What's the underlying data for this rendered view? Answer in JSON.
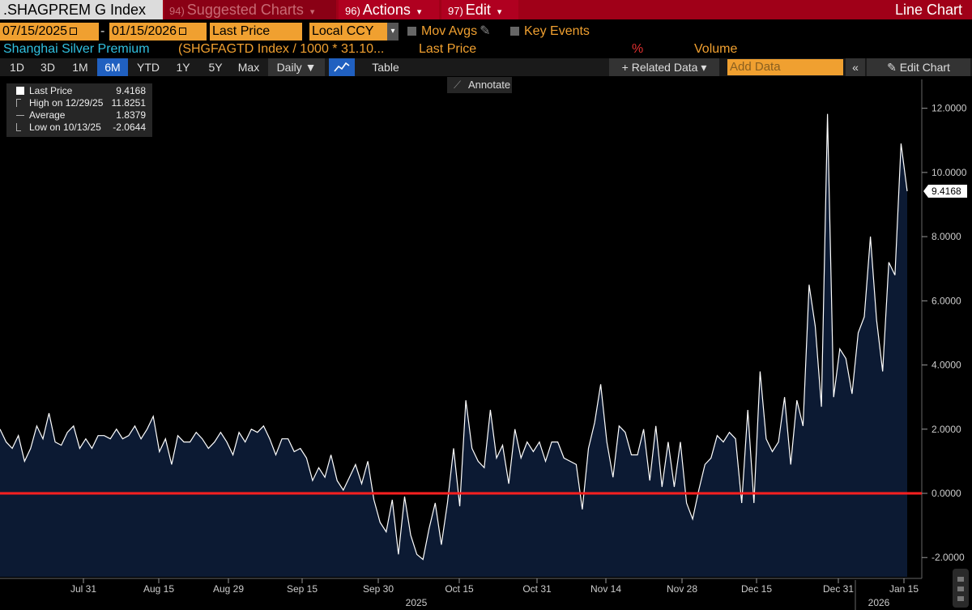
{
  "header": {
    "ticker": ".SHAGPREM G Index",
    "suggested_num": "94)",
    "suggested_label": "Suggested Charts",
    "actions_num": "96)",
    "actions_label": "Actions",
    "edit_num": "97)",
    "edit_label": "Edit",
    "chart_type": "Line Chart"
  },
  "controls": {
    "start_date": "07/15/2025",
    "separator": "-",
    "end_date": "01/15/2026",
    "field": "Last Price",
    "currency": "Local CCY",
    "mov_avgs": "Mov Avgs",
    "key_events": "Key Events"
  },
  "info_row": {
    "security": "Shanghai Silver Premium",
    "formula": "(SHGFAGTD Index / 1000 * 31.10...",
    "field": "Last Price",
    "percent": "%",
    "volume": "Volume"
  },
  "toolbar": {
    "periods": [
      "1D",
      "3D",
      "1M",
      "6M",
      "YTD",
      "1Y",
      "5Y",
      "Max"
    ],
    "selected_period": "6M",
    "frequency": "Daily ▼",
    "table": "Table",
    "related_data": "+ Related Data ▾",
    "add_data_placeholder": "Add Data",
    "collapse": "«",
    "edit_chart": "Edit Chart"
  },
  "legend": {
    "last_label": "Last Price",
    "last_value": "9.4168",
    "high_label": "High on 12/29/25",
    "high_value": "11.8251",
    "avg_label": "Average",
    "avg_value": "1.8379",
    "low_label": "Low on 10/13/25",
    "low_value": "-2.0644"
  },
  "annotate": "Annotate",
  "colors": {
    "line": "#ffffff",
    "fill": "#0c1a33",
    "zero_line": "#ff2020",
    "last_badge_bg": "#ffffff",
    "last_badge_text": "#000000"
  },
  "chart_data": {
    "type": "area",
    "title": "Shanghai Silver Premium",
    "ylim": [
      -2.6,
      12.9
    ],
    "yticks": [
      "12.0000",
      "10.0000",
      "8.0000",
      "6.0000",
      "4.0000",
      "2.0000",
      "0.0000",
      "-2.0000"
    ],
    "ytick_values": [
      12,
      10,
      8,
      6,
      4,
      2,
      0,
      -2
    ],
    "xticks": [
      "Jul 31",
      "Aug 15",
      "Aug 29",
      "Sep 15",
      "Sep 30",
      "Oct 15",
      "Oct 31",
      "Nov 14",
      "Nov 28",
      "Dec 15",
      "Dec 31",
      "Jan 15"
    ],
    "xtick_years": [
      "2025",
      "2026"
    ],
    "reference_line": 0,
    "last_value_label": "9.4168",
    "series": [
      {
        "name": "Last Price",
        "values": [
          2.0,
          1.6,
          1.4,
          1.8,
          1.0,
          1.4,
          2.1,
          1.7,
          2.5,
          1.6,
          1.5,
          1.9,
          2.1,
          1.4,
          1.7,
          1.4,
          1.8,
          1.8,
          1.7,
          2.0,
          1.7,
          1.8,
          2.1,
          1.7,
          2.0,
          2.4,
          1.3,
          1.7,
          0.9,
          1.8,
          1.6,
          1.6,
          1.9,
          1.7,
          1.4,
          1.6,
          1.9,
          1.6,
          1.2,
          1.9,
          1.6,
          2.0,
          1.9,
          2.1,
          1.7,
          1.2,
          1.7,
          1.7,
          1.3,
          1.4,
          1.1,
          0.4,
          0.8,
          0.5,
          1.2,
          0.4,
          0.1,
          0.5,
          0.9,
          0.3,
          1.0,
          -0.2,
          -0.9,
          -1.2,
          -0.2,
          -1.9,
          -0.1,
          -1.3,
          -1.9,
          -2.06,
          -1.1,
          -0.3,
          -1.6,
          -0.3,
          1.4,
          -0.4,
          2.9,
          1.4,
          1.0,
          0.8,
          2.6,
          1.1,
          1.5,
          0.3,
          2.0,
          1.1,
          1.6,
          1.3,
          1.6,
          1.0,
          1.6,
          1.6,
          1.1,
          1.0,
          0.9,
          -0.5,
          1.4,
          2.2,
          3.4,
          1.6,
          0.5,
          2.1,
          1.9,
          1.2,
          1.2,
          2.0,
          0.4,
          2.1,
          0.2,
          1.6,
          0.2,
          1.6,
          -0.3,
          -0.8,
          0.1,
          0.9,
          1.1,
          1.8,
          1.6,
          1.9,
          1.7,
          -0.3,
          2.6,
          -0.3,
          3.8,
          1.7,
          1.3,
          1.6,
          3.0,
          0.9,
          2.9,
          2.1,
          6.5,
          5.2,
          2.7,
          11.8251,
          3.0,
          4.5,
          4.2,
          3.1,
          5.0,
          5.5,
          8.0,
          5.4,
          3.8,
          7.2,
          6.8,
          10.9,
          9.4168
        ]
      }
    ]
  }
}
